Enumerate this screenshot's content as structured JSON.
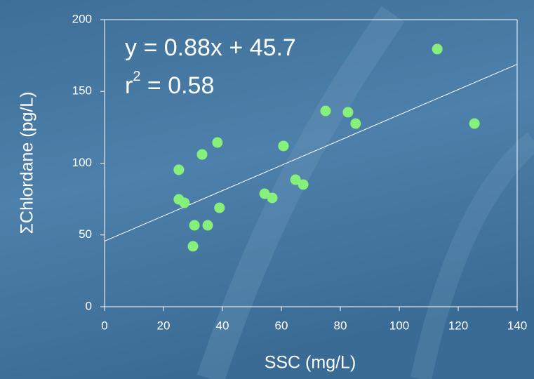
{
  "chart_data": {
    "type": "scatter",
    "x_label": "SSC (mg/L)",
    "y_label": "ΣChlordane (pg/L)",
    "equation": "y = 0.88x + 45.7",
    "r2_label": {
      "base": "r",
      "sup": "2",
      "rest": " = 0.58"
    },
    "trendline": {
      "slope": 0.88,
      "intercept": 45.7,
      "color": "#ffffff"
    },
    "x": [
      25.2,
      25.2,
      27.1,
      30.5,
      30.0,
      33.1,
      35.0,
      38.3,
      39.0,
      54.3,
      56.9,
      60.7,
      64.8,
      67.4,
      75.0,
      82.6,
      85.2,
      112.9,
      125.5
    ],
    "values": [
      95.4,
      74.8,
      72.4,
      56.7,
      42.1,
      106.1,
      56.7,
      114.4,
      68.9,
      78.7,
      75.8,
      112.0,
      88.5,
      85.1,
      136.4,
      135.5,
      127.6,
      179.5,
      127.6
    ],
    "color": "#86f07a",
    "xlim": [
      0,
      140
    ],
    "xticks": [
      0,
      20,
      40,
      60,
      80,
      100,
      120,
      140
    ],
    "ylim": [
      0,
      200
    ],
    "yticks": [
      0,
      50,
      100,
      150,
      200
    ]
  }
}
